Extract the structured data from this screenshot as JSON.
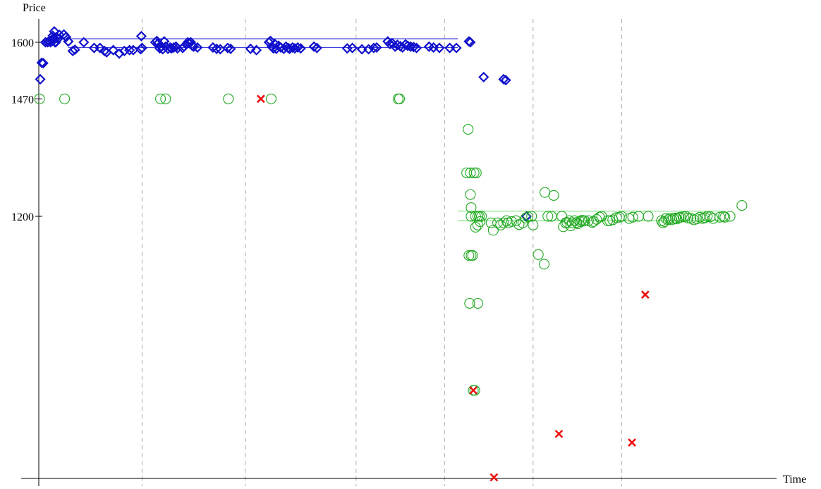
{
  "chart_data": {
    "type": "scatter",
    "title": "",
    "xlabel": "Time",
    "ylabel": "Price",
    "y_ticks": [
      "1600",
      "1470",
      "1200"
    ],
    "y_tick_values": [
      1600,
      1470,
      1200
    ],
    "ylim": [
      600,
      1640
    ],
    "xlim": [
      0,
      100
    ],
    "grid": "dashed vertical lines",
    "period_boundaries": [
      14,
      28,
      43,
      55,
      67,
      79
    ],
    "colors": {
      "diamond": "#1010cc",
      "circle": "#22aa22",
      "cross": "#ee1111",
      "black_line": "#555555",
      "upper_band": "#2222dd",
      "lower_band": "#66dd66",
      "grid": "#aaaaaa"
    },
    "reference_lines": [
      {
        "kind": "black",
        "y": 1470,
        "x0": 0,
        "x1": 56.8
      },
      {
        "kind": "upper_band",
        "y": 1608,
        "x0": 4,
        "x1": 56.8
      },
      {
        "kind": "upper_band",
        "y": 1588,
        "x0": 4,
        "x1": 56.8
      },
      {
        "kind": "lower_band",
        "y": 1212,
        "x0": 56.8,
        "x1": 92.8
      },
      {
        "kind": "lower_band",
        "y": 1190,
        "x0": 56.8,
        "x1": 92.8
      }
    ],
    "series": [
      {
        "marker": "diamond",
        "points": [
          [
            0.4,
            1553
          ],
          [
            0.6,
            1552
          ],
          [
            0.2,
            1515
          ],
          [
            0.9,
            1600
          ],
          [
            1.2,
            1600
          ],
          [
            1.4,
            1602
          ],
          [
            1.6,
            1600
          ],
          [
            1.8,
            1603
          ],
          [
            2.0,
            1605
          ],
          [
            2.2,
            1600
          ],
          [
            1.9,
            1615
          ],
          [
            2.1,
            1625
          ],
          [
            2.4,
            1612
          ],
          [
            2.6,
            1608
          ],
          [
            2.8,
            1617
          ],
          [
            2.0,
            1610
          ],
          [
            2.3,
            1600
          ],
          [
            3.4,
            1618
          ],
          [
            3.7,
            1612
          ],
          [
            4.0,
            1602
          ],
          [
            4.6,
            1580
          ],
          [
            4.9,
            1583
          ],
          [
            6.1,
            1600
          ],
          [
            7.5,
            1587
          ],
          [
            8.3,
            1587
          ],
          [
            8.9,
            1580
          ],
          [
            9.2,
            1577
          ],
          [
            10.1,
            1582
          ],
          [
            10.9,
            1574
          ],
          [
            11.6,
            1580
          ],
          [
            12.3,
            1582
          ],
          [
            12.8,
            1582
          ],
          [
            13.8,
            1584
          ],
          [
            14.0,
            1587
          ],
          [
            13.9,
            1614
          ],
          [
            15.8,
            1600
          ],
          [
            16.0,
            1603
          ],
          [
            16.2,
            1598
          ],
          [
            16.4,
            1586
          ],
          [
            16.6,
            1590
          ],
          [
            16.8,
            1584
          ],
          [
            17.0,
            1602
          ],
          [
            17.2,
            1590
          ],
          [
            17.5,
            1585
          ],
          [
            17.8,
            1588
          ],
          [
            18.0,
            1586
          ],
          [
            18.3,
            1588
          ],
          [
            18.6,
            1590
          ],
          [
            18.8,
            1586
          ],
          [
            19.5,
            1587
          ],
          [
            19.7,
            1590
          ],
          [
            20.0,
            1595
          ],
          [
            20.2,
            1600
          ],
          [
            20.4,
            1598
          ],
          [
            20.6,
            1600
          ],
          [
            20.8,
            1592
          ],
          [
            21.0,
            1590
          ],
          [
            21.5,
            1588
          ],
          [
            23.6,
            1588
          ],
          [
            24.1,
            1585
          ],
          [
            24.6,
            1584
          ],
          [
            25.6,
            1587
          ],
          [
            26.0,
            1585
          ],
          [
            28.7,
            1585
          ],
          [
            29.5,
            1582
          ],
          [
            31.2,
            1600
          ],
          [
            31.4,
            1603
          ],
          [
            31.6,
            1590
          ],
          [
            31.8,
            1586
          ],
          [
            32.0,
            1596
          ],
          [
            32.2,
            1585
          ],
          [
            32.5,
            1592
          ],
          [
            32.8,
            1588
          ],
          [
            33.2,
            1585
          ],
          [
            33.5,
            1590
          ],
          [
            33.8,
            1587
          ],
          [
            34.0,
            1585
          ],
          [
            34.4,
            1588
          ],
          [
            34.7,
            1586
          ],
          [
            35.1,
            1588
          ],
          [
            35.5,
            1586
          ],
          [
            37.3,
            1590
          ],
          [
            37.7,
            1587
          ],
          [
            41.8,
            1586
          ],
          [
            42.5,
            1587
          ],
          [
            43.8,
            1584
          ],
          [
            44.7,
            1584
          ],
          [
            45.4,
            1587
          ],
          [
            45.8,
            1588
          ],
          [
            47.3,
            1602
          ],
          [
            47.6,
            1596
          ],
          [
            47.9,
            1598
          ],
          [
            48.3,
            1590
          ],
          [
            48.6,
            1594
          ],
          [
            49.0,
            1591
          ],
          [
            49.3,
            1588
          ],
          [
            49.7,
            1595
          ],
          [
            50.0,
            1592
          ],
          [
            50.4,
            1590
          ],
          [
            50.8,
            1589
          ],
          [
            51.2,
            1587
          ],
          [
            52.9,
            1590
          ],
          [
            53.5,
            1588
          ],
          [
            54.3,
            1587
          ],
          [
            55.7,
            1587
          ],
          [
            56.6,
            1587
          ],
          [
            58.3,
            1602
          ],
          [
            58.5,
            1600
          ],
          [
            60.3,
            1520
          ],
          [
            63.0,
            1515
          ],
          [
            63.3,
            1513
          ],
          [
            66.1,
            1200
          ]
        ]
      },
      {
        "marker": "circle",
        "points": [
          [
            0.1,
            1470
          ],
          [
            3.5,
            1470
          ],
          [
            16.5,
            1470
          ],
          [
            17.2,
            1470
          ],
          [
            25.7,
            1470
          ],
          [
            31.5,
            1470
          ],
          [
            48.7,
            1470
          ],
          [
            48.9,
            1470
          ],
          [
            58.2,
            1400
          ],
          [
            58.0,
            1300
          ],
          [
            58.5,
            1300
          ],
          [
            59.0,
            1300
          ],
          [
            59.3,
            1300
          ],
          [
            58.5,
            1250
          ],
          [
            58.6,
            1220
          ],
          [
            59.2,
            1200
          ],
          [
            58.6,
            1200
          ],
          [
            59.5,
            1200
          ],
          [
            59.7,
            1200
          ],
          [
            60.0,
            1200
          ],
          [
            59.5,
            1180
          ],
          [
            59.8,
            1188
          ],
          [
            59.2,
            1175
          ],
          [
            58.3,
            1110
          ],
          [
            58.6,
            1110
          ],
          [
            58.8,
            1110
          ],
          [
            58.4,
            1000
          ],
          [
            59.5,
            1000
          ],
          [
            58.9,
            800
          ],
          [
            59.1,
            800
          ],
          [
            61.3,
            1185
          ],
          [
            61.6,
            1168
          ],
          [
            62.2,
            1185
          ],
          [
            62.6,
            1180
          ],
          [
            63.0,
            1185
          ],
          [
            63.4,
            1190
          ],
          [
            63.6,
            1185
          ],
          [
            64.1,
            1188
          ],
          [
            64.7,
            1190
          ],
          [
            65.1,
            1181
          ],
          [
            65.6,
            1185
          ],
          [
            66.0,
            1196
          ],
          [
            66.3,
            1199
          ],
          [
            66.8,
            1200
          ],
          [
            67.0,
            1180
          ],
          [
            67.7,
            1112
          ],
          [
            68.5,
            1090
          ],
          [
            68.6,
            1255
          ],
          [
            69.0,
            1200
          ],
          [
            69.5,
            1200
          ],
          [
            69.8,
            1248
          ],
          [
            70.9,
            1200
          ],
          [
            71.1,
            1176
          ],
          [
            71.4,
            1185
          ],
          [
            71.6,
            1186
          ],
          [
            71.9,
            1190
          ],
          [
            72.1,
            1178
          ],
          [
            72.3,
            1185
          ],
          [
            72.6,
            1190
          ],
          [
            72.9,
            1186
          ],
          [
            73.1,
            1183
          ],
          [
            73.4,
            1188
          ],
          [
            73.6,
            1191
          ],
          [
            73.8,
            1189
          ],
          [
            74.0,
            1190
          ],
          [
            74.5,
            1190
          ],
          [
            75.0,
            1186
          ],
          [
            75.2,
            1188
          ],
          [
            75.6,
            1193
          ],
          [
            76.0,
            1198
          ],
          [
            76.3,
            1200
          ],
          [
            77.1,
            1190
          ],
          [
            77.4,
            1190
          ],
          [
            77.8,
            1192
          ],
          [
            78.3,
            1197
          ],
          [
            78.7,
            1198
          ],
          [
            79.0,
            1200
          ],
          [
            80.0,
            1195
          ],
          [
            80.5,
            1198
          ],
          [
            81.3,
            1200
          ],
          [
            82.6,
            1200
          ],
          [
            84.4,
            1190
          ],
          [
            84.6,
            1185
          ],
          [
            84.8,
            1188
          ],
          [
            85.0,
            1195
          ],
          [
            85.3,
            1192
          ],
          [
            85.5,
            1195
          ],
          [
            85.8,
            1192
          ],
          [
            86.0,
            1195
          ],
          [
            86.3,
            1196
          ],
          [
            86.5,
            1194
          ],
          [
            86.8,
            1197
          ],
          [
            87.0,
            1198
          ],
          [
            87.4,
            1199
          ],
          [
            87.7,
            1200
          ],
          [
            88.0,
            1196
          ],
          [
            88.4,
            1195
          ],
          [
            88.8,
            1192
          ],
          [
            89.2,
            1194
          ],
          [
            89.6,
            1198
          ],
          [
            90.0,
            1195
          ],
          [
            90.3,
            1197
          ],
          [
            90.6,
            1200
          ],
          [
            91.0,
            1199
          ],
          [
            91.4,
            1195
          ],
          [
            92.3,
            1198
          ],
          [
            92.8,
            1200
          ],
          [
            93.0,
            1198
          ],
          [
            93.7,
            1200
          ],
          [
            95.3,
            1225
          ]
        ]
      },
      {
        "marker": "cross",
        "points": [
          [
            30.1,
            1470
          ],
          [
            58.9,
            800
          ],
          [
            61.7,
            600
          ],
          [
            70.5,
            700
          ],
          [
            82.2,
            1020
          ],
          [
            80.4,
            680
          ]
        ]
      }
    ]
  }
}
